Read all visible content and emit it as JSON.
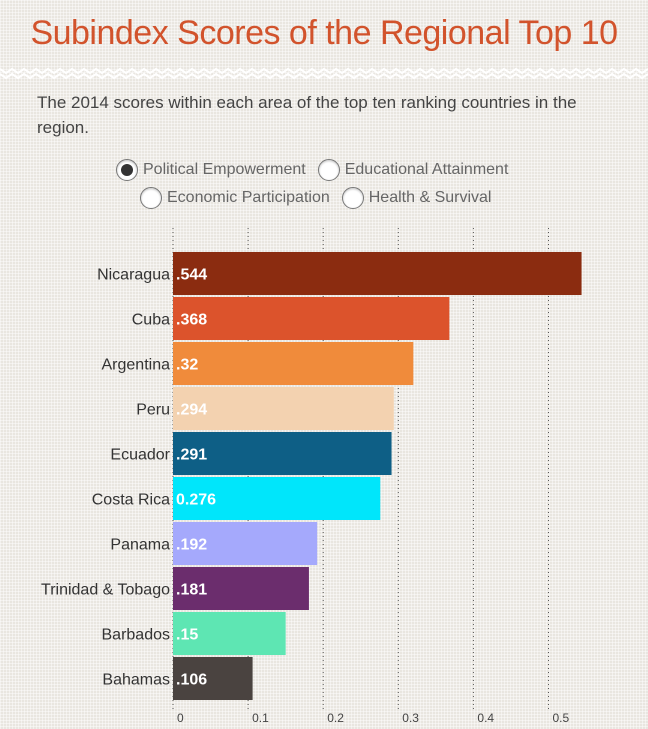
{
  "title": "Subindex Scores of the Regional Top 10",
  "subtitle": "The 2014 scores within each area of the top ten ranking countries in the region.",
  "options": [
    {
      "label": "Political Empowerment",
      "checked": true
    },
    {
      "label": "Educational Attainment",
      "checked": false
    },
    {
      "label": "Economic Participation",
      "checked": false
    },
    {
      "label": "Health & Survival",
      "checked": false
    }
  ],
  "chart_data": {
    "type": "bar",
    "orientation": "horizontal",
    "categories": [
      "Nicaragua",
      "Cuba",
      "Argentina",
      "Peru",
      "Ecuador",
      "Costa Rica",
      "Panama",
      "Trinidad & Tobago",
      "Barbados",
      "Bahamas"
    ],
    "values": [
      0.544,
      0.368,
      0.32,
      0.294,
      0.291,
      0.276,
      0.192,
      0.181,
      0.15,
      0.106
    ],
    "value_labels": [
      ".544",
      ".368",
      ".32",
      ".294",
      ".291",
      "0.276",
      ".192",
      ".181",
      ".15",
      ".106"
    ],
    "colors": [
      "#8b2c10",
      "#dc532c",
      "#f08b3b",
      "#f3d2b0",
      "#0e5f86",
      "#00e6fb",
      "#a5a9fc",
      "#6b2d6d",
      "#5ee6b3",
      "#4a4340"
    ],
    "label_colors": [
      "#ffffff",
      "#ffffff",
      "#ffffff",
      "#ffffff",
      "#ffffff",
      "#ffffff",
      "#ffffff",
      "#ffffff",
      "#ffffff",
      "#ffffff"
    ],
    "xticks": [
      0,
      0.1,
      0.2,
      0.3,
      0.4,
      0.5
    ],
    "xtick_labels": [
      "0",
      "0.1",
      "0.2",
      "0.3",
      "0.4",
      "0.5"
    ],
    "xlim": [
      0,
      0.53
    ],
    "grid": "vertical dashed"
  }
}
